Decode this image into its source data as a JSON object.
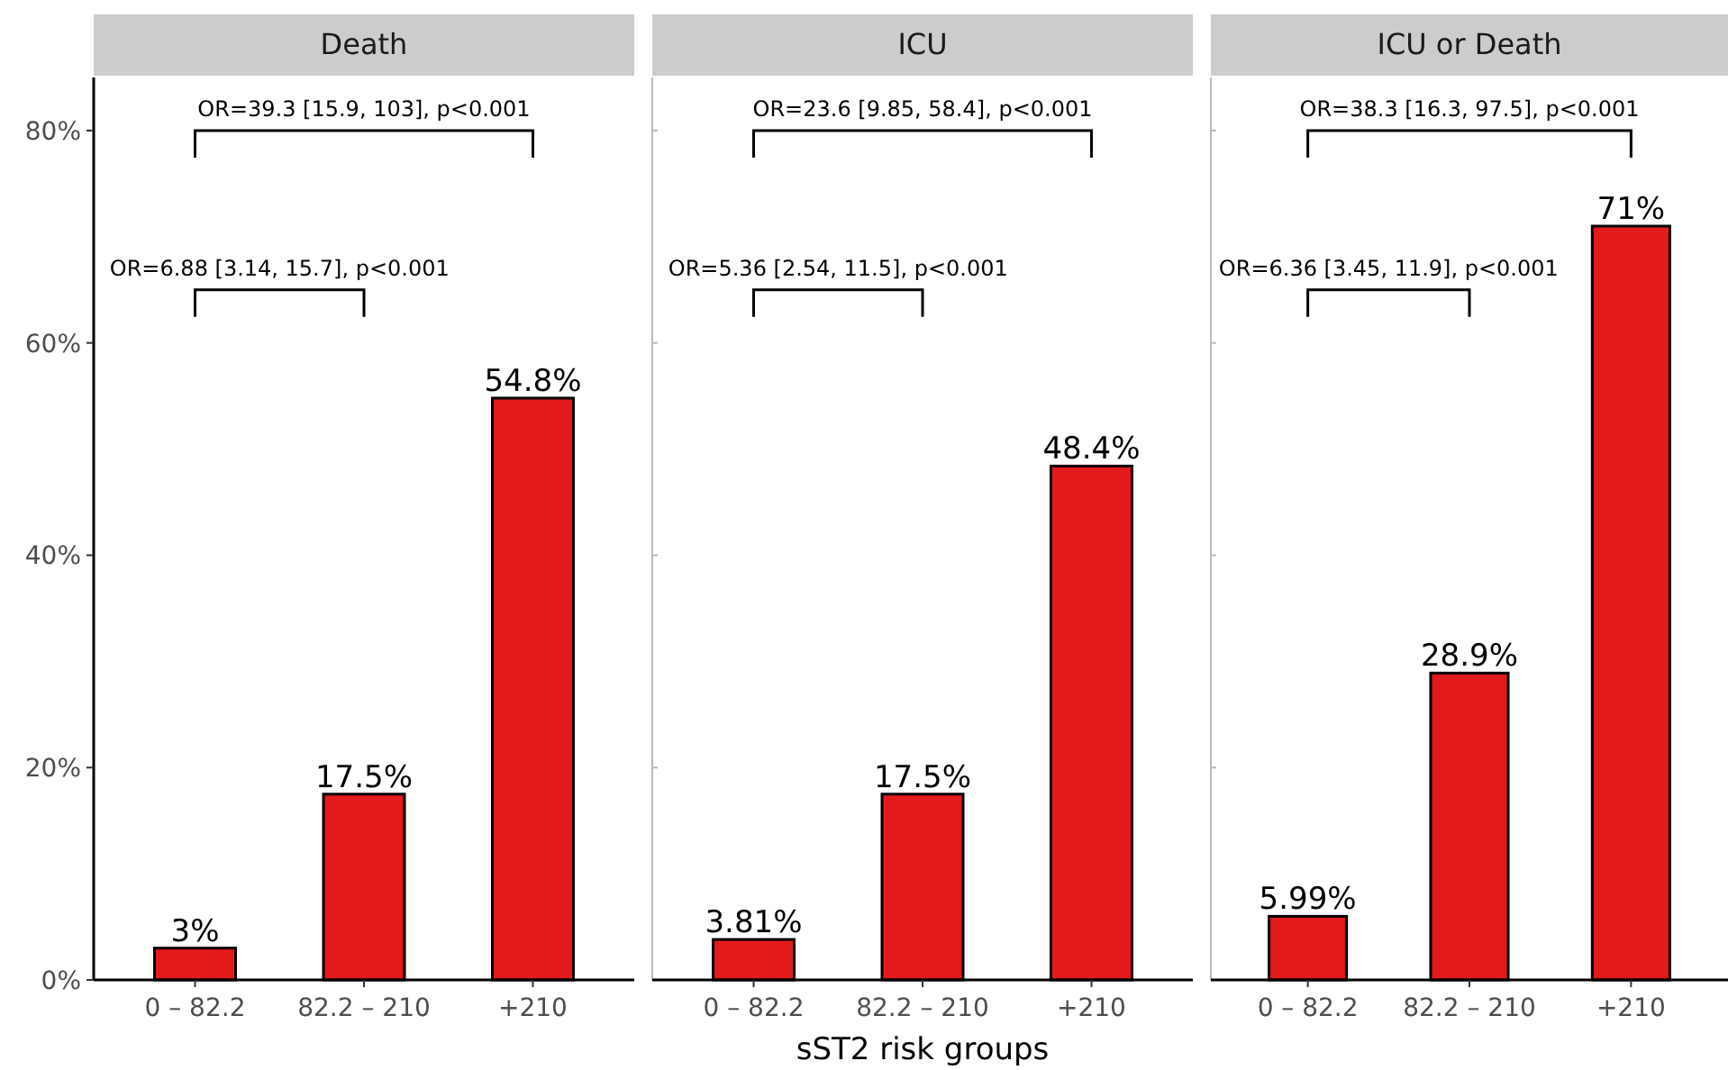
{
  "chart_data": [
    {
      "type": "bar",
      "title": "Death",
      "categories": [
        "0 – 82.2",
        "82.2 – 210",
        "+210"
      ],
      "values": [
        3,
        17.5,
        54.8
      ],
      "value_labels": [
        "3%",
        "17.5%",
        "54.8%"
      ],
      "color": "#e31a1c",
      "ylim": [
        0,
        85
      ],
      "yticks": [
        {
          "value": 0,
          "label": "0%"
        },
        {
          "value": 20,
          "label": "20%"
        },
        {
          "value": 40,
          "label": "40%"
        },
        {
          "value": 60,
          "label": "60%"
        },
        {
          "value": 80,
          "label": "80%"
        }
      ],
      "annotations": [
        "OR=6.88 [3.14, 15.7], p<0.001",
        "OR=39.3 [15.9, 103], p<0.001"
      ],
      "grid": false
    },
    {
      "type": "bar",
      "title": "ICU",
      "xlabel": "sST2 risk groups",
      "categories": [
        "0 – 82.2",
        "82.2 – 210",
        "+210"
      ],
      "values": [
        3.81,
        17.5,
        48.4
      ],
      "value_labels": [
        "3.81%",
        "17.5%",
        "48.4%"
      ],
      "color": "#e31a1c",
      "ylim": [
        0,
        85
      ],
      "yticks": [
        {
          "value": 0,
          "label": null
        },
        {
          "value": 20,
          "label": null
        },
        {
          "value": 40,
          "label": null
        },
        {
          "value": 60,
          "label": null
        },
        {
          "value": 80,
          "label": null
        }
      ],
      "tick_labels": "x",
      "annotations": [
        "OR=5.36 [2.54, 11.5], p<0.001",
        "OR=23.6 [9.85, 58.4], p<0.001"
      ],
      "grid": false
    },
    {
      "type": "bar",
      "title": "ICU or Death",
      "categories": [
        "0 – 82.2",
        "82.2 – 210",
        "+210"
      ],
      "values": [
        5.99,
        28.9,
        71
      ],
      "value_labels": [
        "5.99%",
        "28.9%",
        "71%"
      ],
      "color": "#e31a1c",
      "ylim": [
        0,
        85
      ],
      "yticks": [
        {
          "value": 0,
          "label": null
        },
        {
          "value": 20,
          "label": null
        },
        {
          "value": 40,
          "label": null
        },
        {
          "value": 60,
          "label": null
        },
        {
          "value": 80,
          "label": null
        }
      ],
      "tick_labels": "x",
      "annotations": [
        "OR=6.36 [3.45, 11.9], p<0.001",
        "OR=38.3 [16.3, 97.5], p<0.001"
      ],
      "grid": false
    }
  ]
}
